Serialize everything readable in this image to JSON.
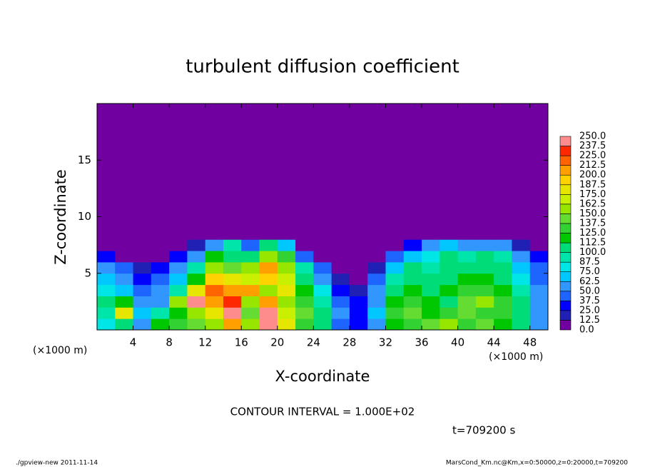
{
  "chart_data": {
    "type": "heatmap",
    "title": "turbulent diffusion coefficient",
    "x_label": "X-coordinate",
    "y_label": "Z-coordinate",
    "x_unit_left": "(×1000 m)",
    "x_unit_right": "(×1000 m)",
    "contour_note": "CONTOUR INTERVAL = 1.000E+02",
    "time_label": "t=709200 s",
    "footer_left": "./gpview-new   2011-11-14",
    "footer_right": "MarsCond_Km.nc@Km,x=0:50000,z=0:20000,t=709200",
    "xlim": [
      0,
      50
    ],
    "ylim": [
      0,
      20
    ],
    "xticks": [
      4,
      8,
      12,
      16,
      20,
      24,
      28,
      32,
      36,
      40,
      44,
      48
    ],
    "yticks": [
      5,
      10,
      15
    ],
    "x_edges": [
      0,
      2,
      4,
      6,
      8,
      10,
      12,
      14,
      16,
      18,
      20,
      22,
      24,
      26,
      28,
      30,
      32,
      34,
      36,
      38,
      40,
      42,
      44,
      46,
      48,
      50
    ],
    "y_edges": [
      0,
      1,
      2,
      3,
      4,
      5,
      6,
      7,
      8,
      9
    ],
    "z": [
      [
        80,
        110,
        60,
        120,
        130,
        140,
        160,
        200,
        150,
        250,
        180,
        130,
        100,
        40,
        30,
        60,
        120,
        130,
        140,
        150,
        130,
        140,
        120,
        100,
        60
      ],
      [
        90,
        180,
        70,
        90,
        120,
        150,
        180,
        240,
        140,
        250,
        170,
        140,
        110,
        50,
        30,
        70,
        130,
        140,
        120,
        130,
        140,
        130,
        130,
        110,
        60
      ],
      [
        100,
        120,
        50,
        60,
        150,
        250,
        200,
        230,
        160,
        200,
        160,
        130,
        90,
        40,
        25,
        60,
        120,
        130,
        120,
        110,
        140,
        150,
        130,
        100,
        55
      ],
      [
        80,
        70,
        40,
        50,
        90,
        180,
        220,
        200,
        200,
        160,
        180,
        120,
        80,
        30,
        20,
        50,
        100,
        120,
        110,
        120,
        130,
        130,
        120,
        90,
        50
      ],
      [
        70,
        60,
        30,
        40,
        70,
        120,
        190,
        180,
        170,
        190,
        170,
        110,
        60,
        20,
        10,
        40,
        90,
        110,
        100,
        110,
        120,
        120,
        110,
        80,
        45
      ],
      [
        60,
        40,
        20,
        30,
        50,
        90,
        160,
        140,
        150,
        200,
        150,
        90,
        40,
        10,
        0,
        20,
        70,
        100,
        90,
        110,
        110,
        110,
        100,
        70,
        40
      ],
      [
        30,
        10,
        0,
        10,
        30,
        60,
        120,
        110,
        100,
        160,
        130,
        40,
        10,
        0,
        0,
        0,
        40,
        70,
        80,
        100,
        90,
        100,
        90,
        60,
        30
      ],
      [
        0,
        0,
        0,
        0,
        0,
        20,
        60,
        90,
        40,
        100,
        70,
        10,
        0,
        0,
        0,
        0,
        10,
        30,
        60,
        70,
        60,
        60,
        50,
        20,
        0
      ],
      [
        0,
        0,
        0,
        0,
        0,
        0,
        0,
        10,
        0,
        0,
        0,
        0,
        0,
        0,
        0,
        0,
        0,
        0,
        0,
        0,
        0,
        0,
        0,
        0,
        0
      ]
    ],
    "levels": [
      {
        "value": 0,
        "label": "0.0"
      },
      12.5,
      {
        "value": 25,
        "label": "25.0"
      },
      37.5,
      {
        "value": 50,
        "label": "50.0"
      },
      62.5,
      {
        "value": 75,
        "label": "75.0"
      },
      87.5,
      {
        "value": 100,
        "label": "100.0"
      },
      112.5,
      {
        "value": 125,
        "label": "125.0"
      },
      137.5,
      {
        "value": 150,
        "label": "150.0"
      },
      162.5,
      {
        "value": 175,
        "label": "175.0"
      },
      187.5,
      {
        "value": 200,
        "label": "200.0"
      },
      212.5,
      {
        "value": 225,
        "label": "225.0"
      },
      237.5,
      {
        "value": 250,
        "label": "250.0"
      }
    ],
    "colors": [
      "#7000a0",
      "#2020b4",
      "#0000ff",
      "#1e64ff",
      "#3296ff",
      "#00c8ff",
      "#00e6e6",
      "#00e6aa",
      "#00dc78",
      "#00c800",
      "#32d232",
      "#64dc32",
      "#96e600",
      "#c8f000",
      "#e6e600",
      "#ffd200",
      "#ffa000",
      "#ff6400",
      "#ff2800",
      "#ff8c8c"
    ]
  }
}
